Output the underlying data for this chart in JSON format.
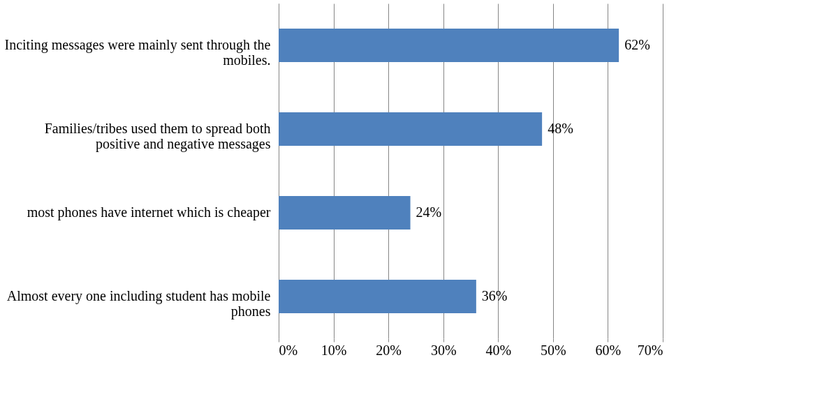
{
  "chart_data": {
    "type": "bar",
    "orientation": "horizontal",
    "categories": [
      "Inciting messages were mainly sent through the mobiles.",
      "Families/tribes used them to spread both positive and negative messages",
      "most phones have internet which is cheaper",
      "Almost every one including student has mobile phones"
    ],
    "values": [
      62,
      48,
      24,
      36
    ],
    "value_labels": [
      "62%",
      "48%",
      "24%",
      "36%"
    ],
    "color": "#4f81bd",
    "xlim": [
      0,
      70
    ],
    "xticks": [
      {
        "value": 0,
        "label": "0%"
      },
      {
        "value": 10,
        "label": "10%"
      },
      {
        "value": 20,
        "label": "20%"
      },
      {
        "value": 30,
        "label": "30%"
      },
      {
        "value": 40,
        "label": "40%"
      },
      {
        "value": 50,
        "label": "50%"
      },
      {
        "value": 60,
        "label": "60%"
      },
      {
        "value": 70,
        "label": "70%"
      }
    ],
    "grid": "x"
  }
}
